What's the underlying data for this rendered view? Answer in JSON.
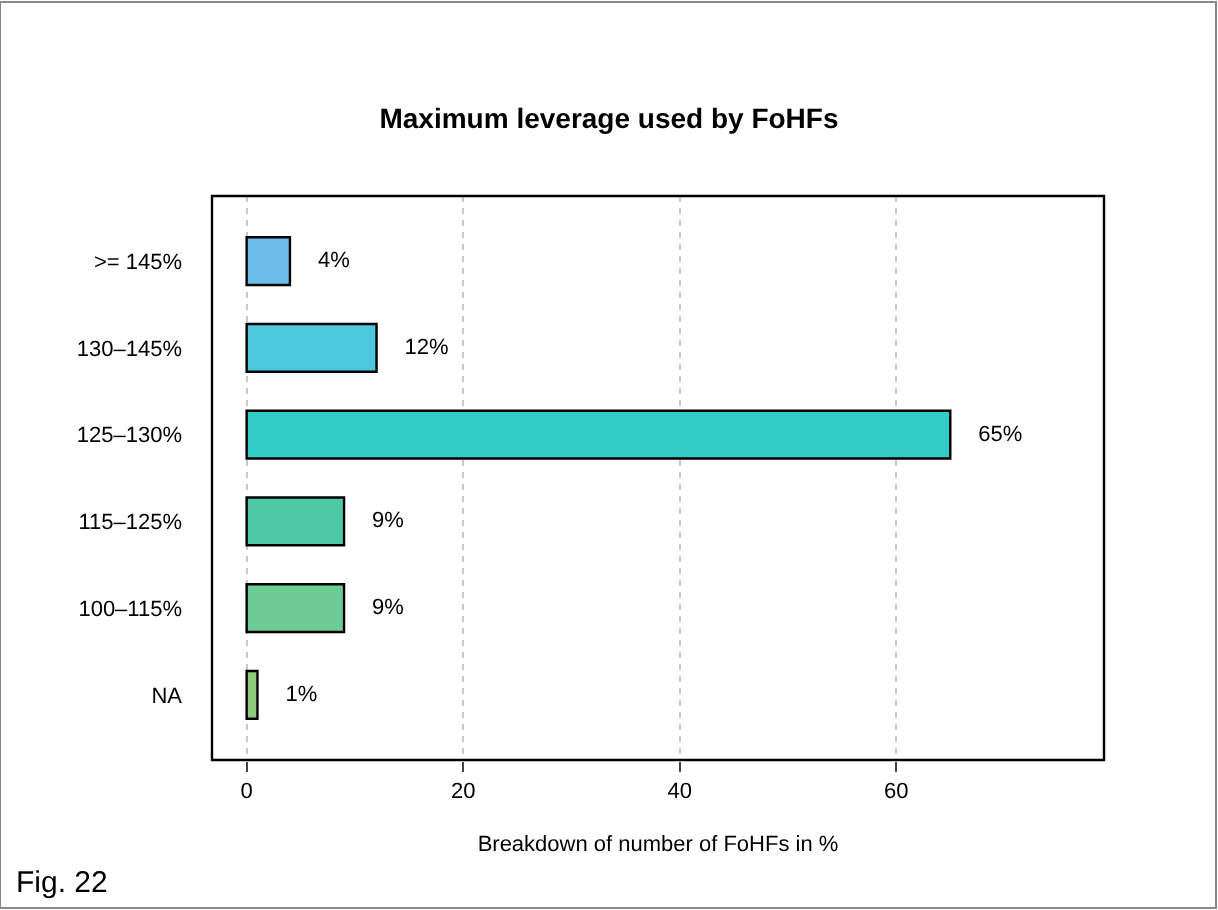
{
  "chart_data": {
    "type": "bar",
    "orientation": "horizontal",
    "title": "Maximum leverage used by FoHFs",
    "xlabel": "Breakdown of number of FoHFs in %",
    "categories": [
      ">= 145%",
      "130–145%",
      "125–130%",
      "115–125%",
      "100–115%",
      "NA"
    ],
    "values": [
      4,
      12,
      65,
      9,
      9,
      1
    ],
    "value_labels": [
      "4%",
      "12%",
      "65%",
      "9%",
      "9%",
      "1%"
    ],
    "colors": [
      "#6cbde8",
      "#4cc8dc",
      "#33ccc4",
      "#4cc8a4",
      "#6ccc94",
      "#8ccc7c"
    ],
    "xlim": [
      -3.2,
      79.2
    ],
    "xticks": [
      0,
      20,
      40,
      60
    ],
    "grid": "x",
    "annotations": [
      "Fig. 22"
    ]
  }
}
